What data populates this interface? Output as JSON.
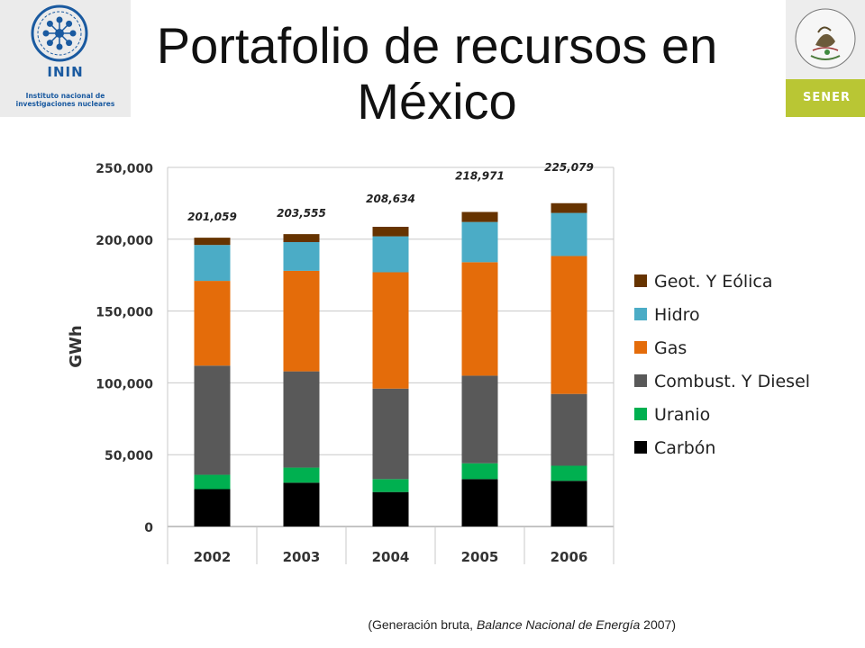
{
  "slide": {
    "title": "Portafolio de recursos en México",
    "caption": {
      "prefix": "(Generación bruta, ",
      "source_italic": "Balance Nacional de Energía",
      "suffix": " 2007)"
    },
    "logo_left": {
      "icon": "inin-atom-logo",
      "name": "ININ",
      "subtitle_line1": "Instituto nacional de",
      "subtitle_line2": "investigaciones nucleares"
    },
    "logo_right": {
      "icon": "mexican-coat-of-arms-seal",
      "seal_text": "ESTADOS UNIDOS MEXICANOS",
      "name": "SENER",
      "band_color": "#b9c634"
    }
  },
  "chart_data": {
    "type": "bar",
    "stacked": true,
    "categories": [
      "2002",
      "2003",
      "2004",
      "2005",
      "2006"
    ],
    "ylabel": "GWh",
    "xlabel": "",
    "ylim": [
      0,
      250000
    ],
    "yticks": [
      0,
      50000,
      100000,
      150000,
      200000,
      250000
    ],
    "ytick_labels": [
      "0",
      "50,000",
      "100,000",
      "150,000",
      "200,000",
      "250,000"
    ],
    "grid": true,
    "legend_position": "right",
    "totals": [
      201059,
      203555,
      208634,
      218971,
      225079
    ],
    "total_labels": [
      "201,059",
      "203,555",
      "208,634",
      "218,971",
      "225,079"
    ],
    "series": [
      {
        "name": "Carbón",
        "color": "#000000",
        "values": [
          26000,
          30500,
          24000,
          33000,
          31800
        ]
      },
      {
        "name": "Uranio",
        "color": "#00b050",
        "values": [
          10000,
          10500,
          9000,
          11000,
          10500
        ]
      },
      {
        "name": "Combust. Y Diesel",
        "color": "#595959",
        "values": [
          76000,
          67000,
          63000,
          61000,
          50000
        ]
      },
      {
        "name": "Gas",
        "color": "#e46c0a",
        "values": [
          59000,
          70000,
          81000,
          79000,
          96000
        ]
      },
      {
        "name": "Hidro",
        "color": "#4bacc6",
        "values": [
          25000,
          20000,
          25000,
          28000,
          30000
        ]
      },
      {
        "name": "Geot. Y Eólica",
        "color": "#663300",
        "values": [
          5059,
          5555,
          6634,
          6971,
          6779
        ]
      }
    ]
  }
}
